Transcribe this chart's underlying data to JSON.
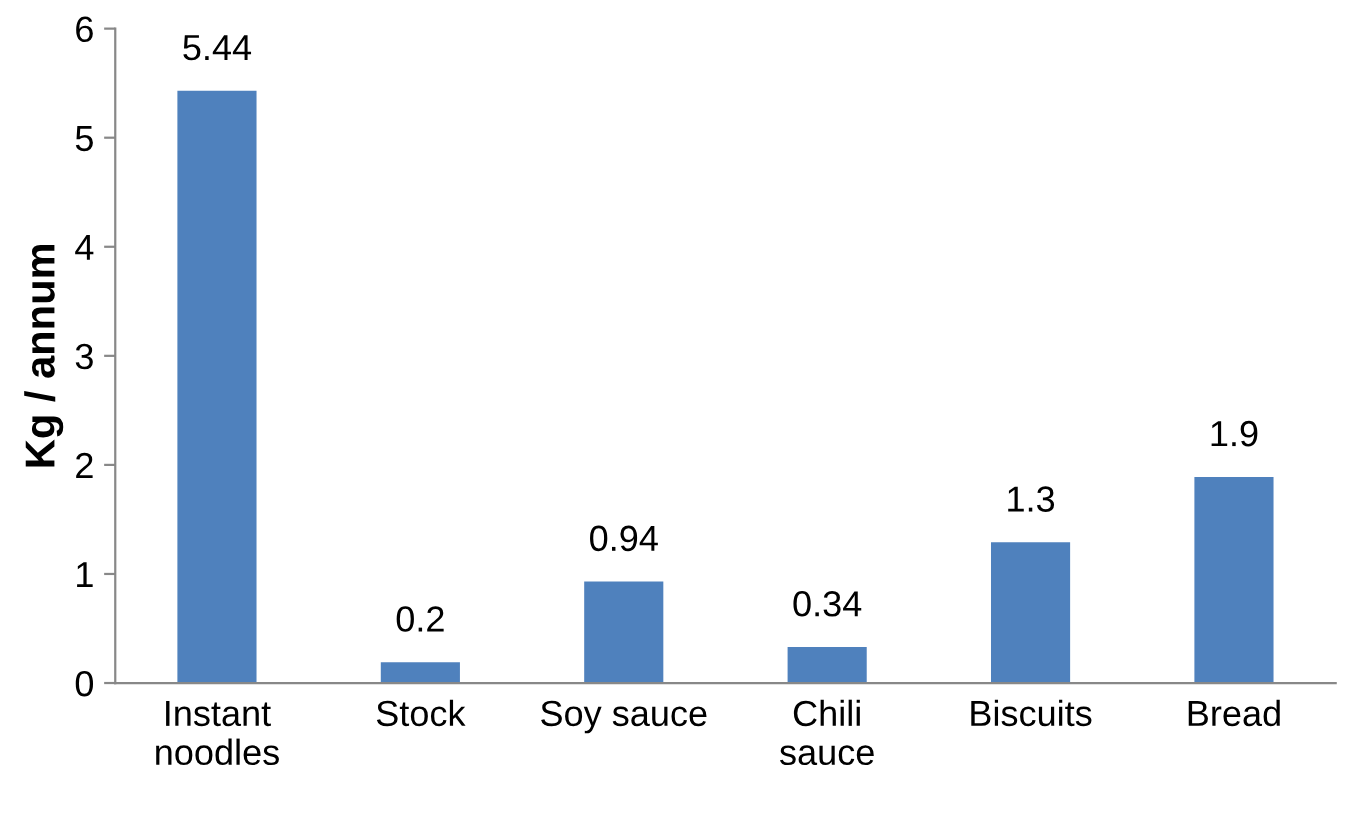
{
  "chart_data": {
    "type": "bar",
    "ylabel": "Kg / annum",
    "categories": [
      "Instant\nnoodles",
      "Stock",
      "Soy sauce",
      "Chili\nsauce",
      "Biscuits",
      "Bread"
    ],
    "values": [
      5.44,
      0.2,
      0.94,
      0.34,
      1.3,
      1.9
    ],
    "color": "#4f81bd",
    "ylim": [
      0,
      6
    ],
    "yticks": [
      0,
      1,
      2,
      3,
      4,
      5,
      6
    ],
    "grid": false,
    "data_labels": true
  }
}
